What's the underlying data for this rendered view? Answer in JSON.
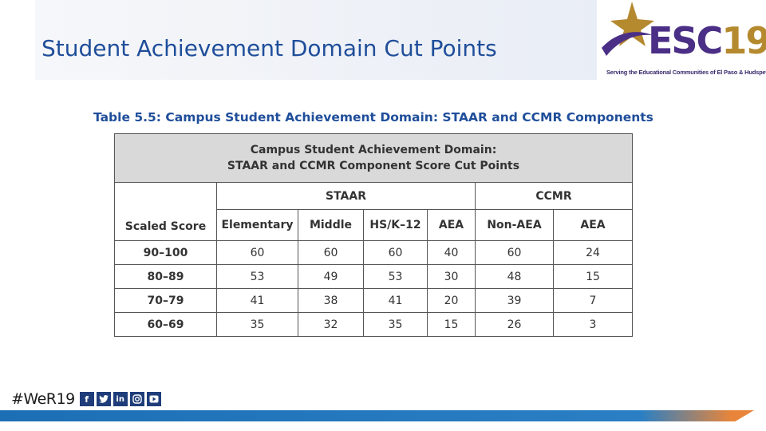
{
  "slide": {
    "title": "Student Achievement Domain Cut Points"
  },
  "logo": {
    "name": "ESC",
    "number": "19",
    "tagline": "Serving the Educational Communities of El Paso & Hudspeth Counties"
  },
  "table": {
    "caption": "Table 5.5: Campus Student Achievement Domain: STAAR and CCMR Components",
    "header_line1": "Campus Student Achievement Domain:",
    "header_line2": "STAAR and CCMR Component Score Cut Points",
    "groups": {
      "staar": "STAAR",
      "ccmr": "CCMR"
    },
    "columns": [
      "Scaled Score",
      "Elementary",
      "Middle",
      "HS/K–12",
      "AEA",
      "Non-AEA",
      "AEA"
    ],
    "rows": [
      [
        "90–100",
        "60",
        "60",
        "60",
        "40",
        "60",
        "24"
      ],
      [
        "80–89",
        "53",
        "49",
        "53",
        "30",
        "48",
        "15"
      ],
      [
        "70–79",
        "41",
        "38",
        "41",
        "20",
        "39",
        "7"
      ],
      [
        "60–69",
        "35",
        "32",
        "35",
        "15",
        "26",
        "3"
      ]
    ]
  },
  "footer": {
    "hashtag": "#WeR19",
    "icons": [
      "facebook-icon",
      "twitter-icon",
      "linkedin-icon",
      "instagram-icon",
      "youtube-icon"
    ],
    "colors": {
      "bar_blue": "#1d6fb5",
      "bar_orange": "#e8853a"
    }
  }
}
